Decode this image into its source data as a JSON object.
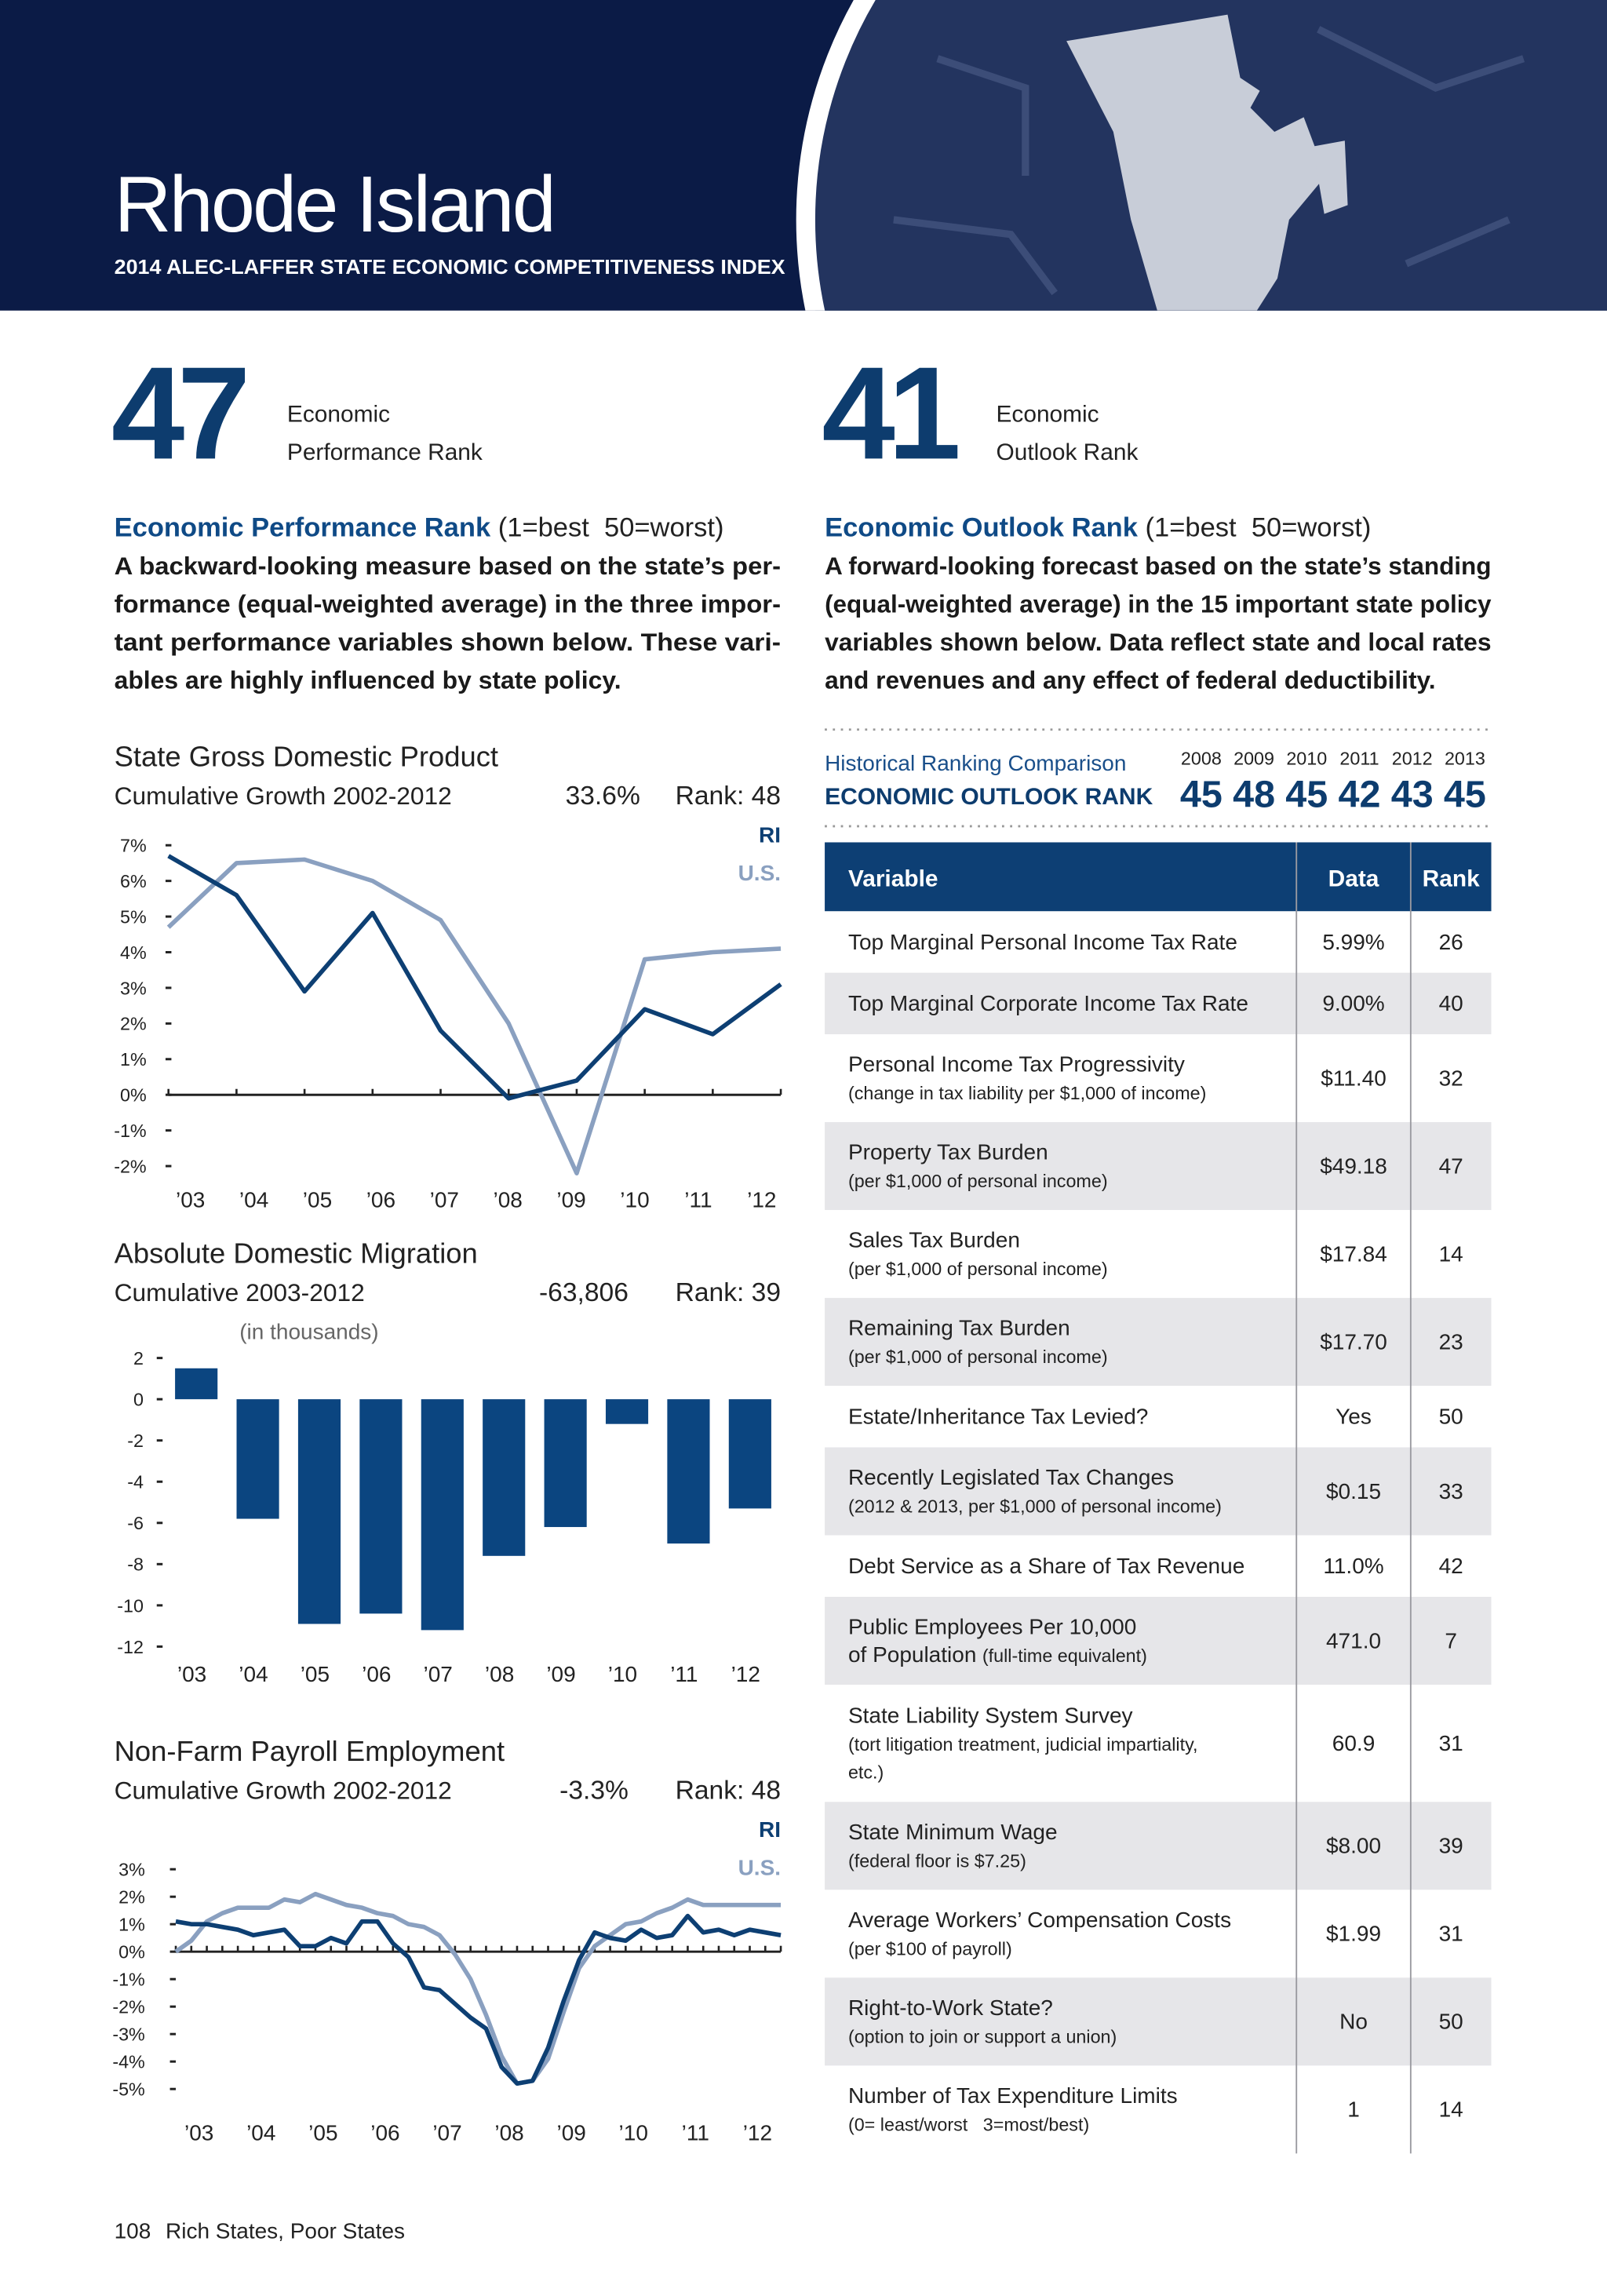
{
  "header": {
    "title": "Rhode Island",
    "subtitle": "2014 ALEC-LAFFER STATE ECONOMIC COMPETITIVENESS INDEX"
  },
  "performance": {
    "rank": 47,
    "rank_label": [
      "Economic",
      "Performance Rank"
    ],
    "heading": "Economic Performance Rank",
    "scale": " (1=best  50=worst)",
    "description": [
      "A backward-looking measure based on the state’s per-",
      "formance (equal-weighted average) in the three impor-",
      "tant performance variables shown below. These vari-",
      "ables are highly influenced by state policy."
    ]
  },
  "outlook": {
    "rank": 41,
    "rank_label": [
      "Economic",
      "Outlook Rank"
    ],
    "heading": "Economic Outlook Rank",
    "scale": " (1=best  50=worst)",
    "description": [
      "A forward-looking forecast based on the state’s standing",
      "(equal-weighted average) in the 15 important state policy",
      "variables shown below. Data reflect state and local rates",
      "and revenues and any effect of federal deductibility."
    ]
  },
  "historical": {
    "title": "Historical Ranking Comparison",
    "subtitle": "ECONOMIC OUTLOOK RANK",
    "years": [
      2008,
      2009,
      2010,
      2011,
      2012,
      2013
    ],
    "ranks": [
      45,
      48,
      45,
      42,
      43,
      45
    ]
  },
  "table": {
    "columns": [
      "Variable",
      "Data",
      "Rank"
    ],
    "rows": [
      {
        "label": [
          "Top Marginal Personal Income Tax Rate"
        ],
        "note": [],
        "data": "5.99%",
        "rank": 26
      },
      {
        "label": [
          "Top Marginal Corporate Income Tax Rate"
        ],
        "note": [],
        "data": "9.00%",
        "rank": 40
      },
      {
        "label": [
          "Personal Income Tax Progressivity"
        ],
        "note": [
          "(change in tax liability per $1,000 of income)"
        ],
        "data": "$11.40",
        "rank": 32
      },
      {
        "label": [
          "Property Tax Burden"
        ],
        "note": [
          "(per $1,000 of personal income)"
        ],
        "data": "$49.18",
        "rank": 47
      },
      {
        "label": [
          "Sales Tax Burden"
        ],
        "note": [
          "(per $1,000 of personal income)"
        ],
        "data": "$17.84",
        "rank": 14
      },
      {
        "label": [
          "Remaining Tax Burden"
        ],
        "note": [
          "(per $1,000 of personal income)"
        ],
        "data": "$17.70",
        "rank": 23
      },
      {
        "label": [
          "Estate/Inheritance Tax Levied?"
        ],
        "note": [],
        "data": "Yes",
        "rank": 50
      },
      {
        "label": [
          "Recently Legislated Tax Changes"
        ],
        "note": [
          "(2012 & 2013, per $1,000 of personal income)"
        ],
        "data": "$0.15",
        "rank": 33
      },
      {
        "label": [
          "Debt Service as a Share of Tax Revenue"
        ],
        "note": [],
        "data": "11.0%",
        "rank": 42
      },
      {
        "label": [
          "Public Employees Per 10,000",
          "of Population"
        ],
        "note": [
          "(full-time equivalent)"
        ],
        "data": "471.0",
        "rank": 7
      },
      {
        "label": [
          "State Liability System Survey"
        ],
        "note": [
          "(tort litigation treatment, judicial impartiality,",
          "etc.)"
        ],
        "data": "60.9",
        "rank": 31
      },
      {
        "label": [
          "State Minimum Wage"
        ],
        "note": [
          "(federal floor is $7.25)"
        ],
        "data": "$8.00",
        "rank": 39
      },
      {
        "label": [
          "Average Workers’ Compensation Costs"
        ],
        "note": [
          "(per $100 of payroll)"
        ],
        "data": "$1.99",
        "rank": 31
      },
      {
        "label": [
          "Right-to-Work State?"
        ],
        "note": [
          "(option to join or support a union)"
        ],
        "data": "No",
        "rank": 50
      },
      {
        "label": [
          "Number of Tax Expenditure Limits"
        ],
        "note": [
          "(0= least/worst   3=most/best)"
        ],
        "data": 1,
        "rank": 14
      }
    ]
  },
  "chart_data": [
    {
      "type": "line",
      "title": "State Gross Domestic Product",
      "subtitle": "Cumulative Growth 2002-2012",
      "stat": "33.6%",
      "rank": "Rank: 48",
      "categories": [
        "’03",
        "’04",
        "’05",
        "’06",
        "’07",
        "’08",
        "’09",
        "’10",
        "’11",
        "’12"
      ],
      "series": [
        {
          "name": "RI",
          "color": "#0d3f73",
          "values": [
            6.7,
            5.6,
            2.9,
            5.1,
            1.8,
            -0.1,
            0.4,
            2.4,
            1.7,
            3.1
          ]
        },
        {
          "name": "U.S.",
          "color": "#8aa0c0",
          "values": [
            4.7,
            6.5,
            6.6,
            6.0,
            4.9,
            2.0,
            -2.2,
            3.8,
            4.0,
            4.1
          ]
        }
      ],
      "ylim": [
        -2,
        7
      ],
      "yticks": [
        {
          "value": 7,
          "label": "7%"
        },
        {
          "value": 6,
          "label": "6%"
        },
        {
          "value": 5,
          "label": "5%"
        },
        {
          "value": 4,
          "label": "4%"
        },
        {
          "value": 3,
          "label": "3%"
        },
        {
          "value": 2,
          "label": "2%"
        },
        {
          "value": 1,
          "label": "1%"
        },
        {
          "value": 0,
          "label": "0%"
        },
        {
          "value": -1,
          "label": "-1%"
        },
        {
          "value": -2,
          "label": "-2%"
        }
      ]
    },
    {
      "type": "bar",
      "title": "Absolute Domestic Migration",
      "subtitle": "Cumulative 2003-2012",
      "stat": "-63,806",
      "rank": "Rank: 39",
      "annotation": "(in thousands)",
      "categories": [
        "’03",
        "’04",
        "’05",
        "’06",
        "’07",
        "’08",
        "’09",
        "’10",
        "’11",
        "’12"
      ],
      "values": [
        1.5,
        -5.8,
        -10.9,
        -10.4,
        -11.2,
        -7.6,
        -6.2,
        -1.2,
        -7.0,
        -5.3
      ],
      "color": "#0b4580",
      "ylim": [
        -12,
        2
      ],
      "yticks": [
        2,
        0,
        -2,
        -4,
        -6,
        -8,
        -10,
        -12
      ]
    },
    {
      "type": "line",
      "title": "Non-Farm Payroll Employment",
      "subtitle": "Cumulative Growth 2002-2012",
      "stat": "-3.3%",
      "rank": "Rank: 48",
      "categories": [
        "’03",
        null,
        null,
        null,
        "’04",
        null,
        null,
        null,
        "’05",
        null,
        null,
        null,
        "’06",
        null,
        null,
        null,
        "’07",
        null,
        null,
        null,
        "’08",
        null,
        null,
        null,
        "’09",
        null,
        null,
        null,
        "’10",
        null,
        null,
        null,
        "’11",
        null,
        null,
        null,
        "’12",
        null,
        null,
        null
      ],
      "series": [
        {
          "name": "RI",
          "color": "#0d3f73",
          "values": [
            1.1,
            1.0,
            1.0,
            0.9,
            0.8,
            0.6,
            0.7,
            0.8,
            0.2,
            0.2,
            0.5,
            0.3,
            1.1,
            1.1,
            0.3,
            -0.2,
            -1.3,
            -1.4,
            -1.9,
            -2.4,
            -2.8,
            -4.2,
            -4.8,
            -4.7,
            -3.5,
            -1.8,
            -0.3,
            0.7,
            0.5,
            0.4,
            0.8,
            0.5,
            0.6,
            1.3,
            0.7,
            0.8,
            0.6,
            0.8,
            0.7,
            0.6
          ]
        },
        {
          "name": "U.S.",
          "color": "#8aa0c0",
          "values": [
            0.0,
            0.4,
            1.1,
            1.4,
            1.6,
            1.6,
            1.6,
            1.9,
            1.8,
            2.1,
            1.9,
            1.7,
            1.6,
            1.4,
            1.3,
            1.0,
            0.9,
            0.6,
            -0.1,
            -1.0,
            -2.3,
            -3.8,
            -4.8,
            -4.7,
            -3.9,
            -2.2,
            -0.6,
            0.2,
            0.6,
            1.0,
            1.1,
            1.4,
            1.6,
            1.9,
            1.7,
            1.7,
            1.7,
            1.7,
            1.7,
            1.7
          ]
        }
      ],
      "ylim": [
        -5,
        3
      ],
      "yticks": [
        {
          "value": 3,
          "label": "3%"
        },
        {
          "value": 2,
          "label": "2%"
        },
        {
          "value": 1,
          "label": "1%"
        },
        {
          "value": 0,
          "label": "0%"
        },
        {
          "value": -1,
          "label": "-1%"
        },
        {
          "value": -2,
          "label": "-2%"
        },
        {
          "value": -3,
          "label": "-3%"
        },
        {
          "value": -4,
          "label": "-4%"
        },
        {
          "value": -5,
          "label": "-5%"
        }
      ]
    }
  ],
  "footer": {
    "page": 108,
    "text": "Rich States, Poor States"
  }
}
